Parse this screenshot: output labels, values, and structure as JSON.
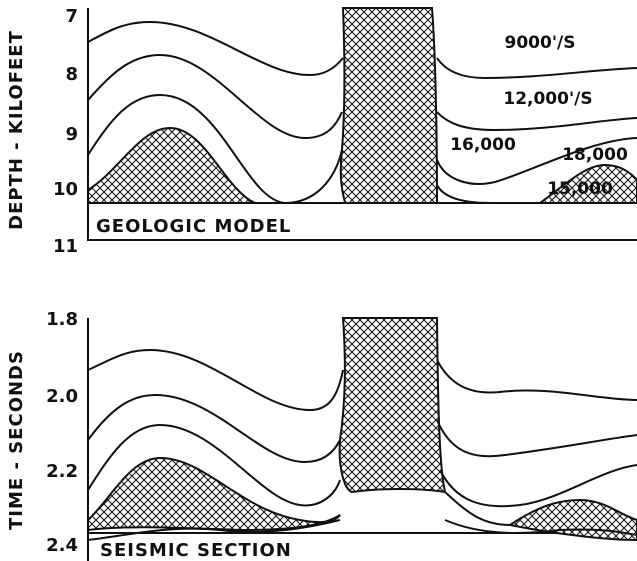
{
  "panels": [
    {
      "label": "GEOLOGIC MODEL",
      "axis_title": "DEPTH - KILOFEET",
      "ticks": [
        "7",
        "8",
        "9",
        "10",
        "11"
      ],
      "annotations": [
        "9000'/S",
        "12,000'/S",
        "16,000",
        "18,000",
        "15,000"
      ]
    },
    {
      "label": "SEISMIC SECTION",
      "axis_title": "TIME - SECONDS",
      "ticks": [
        "1.8",
        "2.0",
        "2.2",
        "2.4"
      ]
    }
  ]
}
